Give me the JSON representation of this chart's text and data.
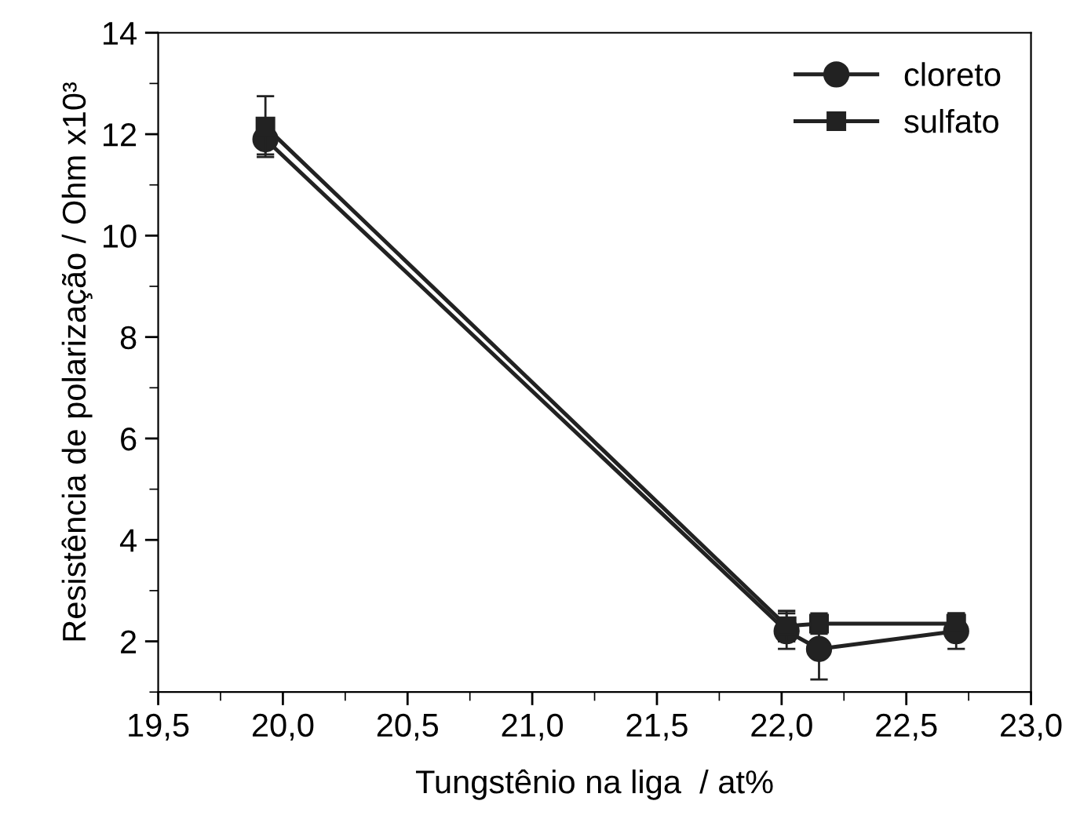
{
  "chart_data": {
    "type": "line",
    "xlabel": "Tungstênio na liga  / at%",
    "ylabel": "Resistência de polarização / Ohm x10³",
    "xlim": [
      19.5,
      23.0
    ],
    "xticks": [
      {
        "value": 19.5,
        "label": "19,5"
      },
      {
        "value": 20.0,
        "label": "20,0"
      },
      {
        "value": 20.5,
        "label": "20,5"
      },
      {
        "value": 21.0,
        "label": "21,0"
      },
      {
        "value": 21.5,
        "label": "21,5"
      },
      {
        "value": 22.0,
        "label": "22,0"
      },
      {
        "value": 22.5,
        "label": "22,5"
      },
      {
        "value": 23.0,
        "label": "23,0"
      }
    ],
    "ylim": [
      1,
      14
    ],
    "yticks": [
      2,
      4,
      6,
      8,
      10,
      12,
      14
    ],
    "grid": false,
    "legend": "top right",
    "line_style": "solid",
    "series": [
      {
        "name": "cloreto",
        "color": "#222222",
        "marker": "circle",
        "x": [
          19.93,
          22.02,
          22.15,
          22.7
        ],
        "values": [
          11.9,
          2.2,
          1.85,
          2.2
        ],
        "errors": [
          0.3,
          0.35,
          0.6,
          0.35
        ]
      },
      {
        "name": "sulfato",
        "color": "#222222",
        "marker": "square",
        "x": [
          19.93,
          22.02,
          22.15,
          22.7
        ],
        "values": [
          12.15,
          2.3,
          2.35,
          2.35
        ],
        "errors": [
          0.6,
          0.3,
          0.2,
          0.2
        ]
      }
    ]
  }
}
